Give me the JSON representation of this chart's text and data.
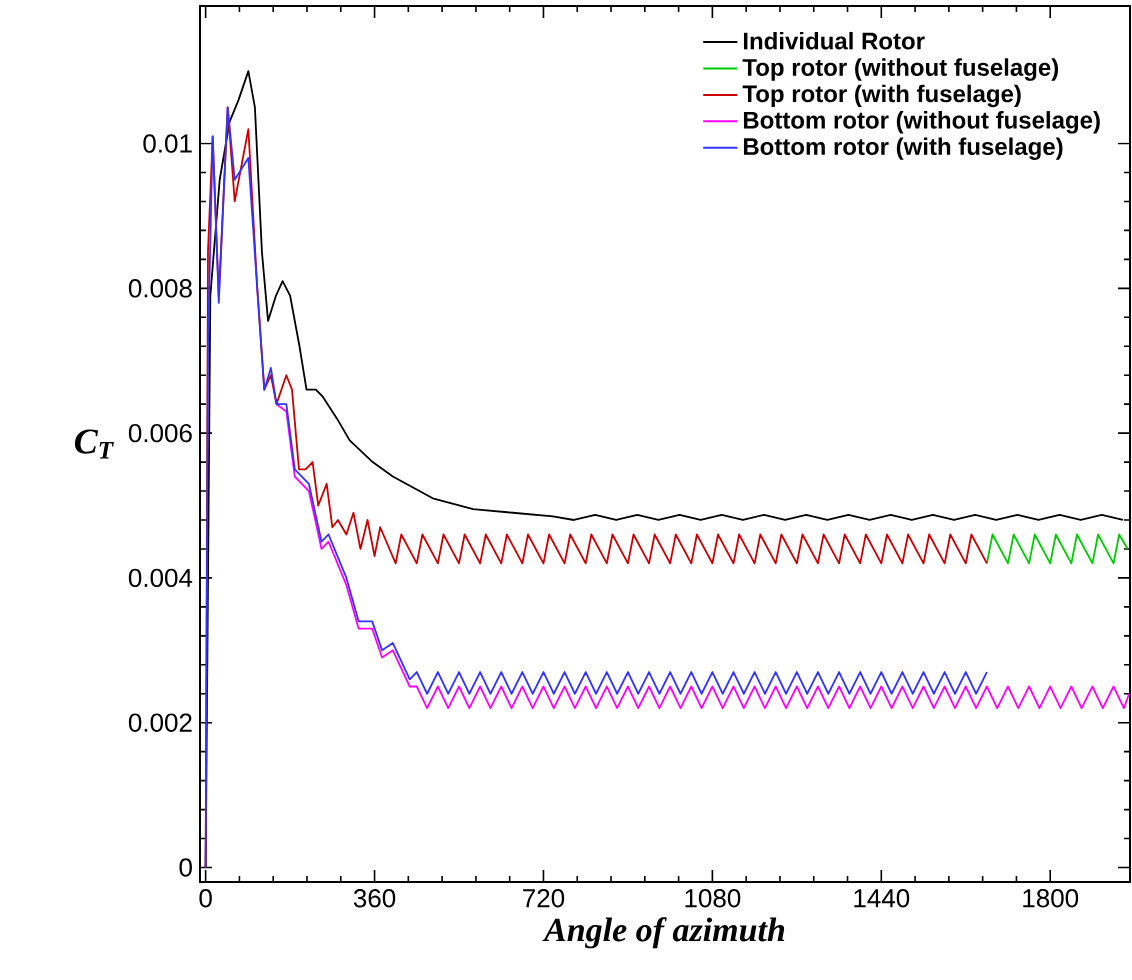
{
  "chart_data": {
    "type": "line",
    "xlabel": "Angle of azimuth",
    "ylabel": "C$_{T}$",
    "xlim": [
      -12,
      1970
    ],
    "ylim": [
      -0.0002,
      0.0119
    ],
    "xticks": [
      0,
      360,
      720,
      1080,
      1440,
      1800
    ],
    "yticks": [
      0,
      0.002,
      0.004,
      0.006,
      0.008,
      0.01
    ],
    "grid": false,
    "legend": "top right",
    "marker": "none",
    "line_style": "solid",
    "series": [
      {
        "name": "Individual Rotor",
        "color": "#000000",
        "x": [
          0,
          10,
          30,
          51,
          70,
          91,
          105,
          120,
          133,
          150,
          164,
          180,
          200,
          215,
          235,
          250,
          280,
          307,
          356,
          399,
          484,
          570,
          655,
          740,
          785,
          830,
          875,
          920,
          965,
          1010,
          1055,
          1100,
          1145,
          1190,
          1235,
          1280,
          1325,
          1370,
          1415,
          1460,
          1505,
          1550,
          1595,
          1640,
          1685,
          1730,
          1775,
          1820,
          1865,
          1910,
          1955
        ],
        "values": [
          0,
          0.0079,
          0.0095,
          0.0103,
          0.0106,
          0.011,
          0.0105,
          0.0085,
          0.00755,
          0.0079,
          0.0081,
          0.0079,
          0.0072,
          0.0066,
          0.0066,
          0.0065,
          0.0062,
          0.0059,
          0.0056,
          0.0054,
          0.0051,
          0.00495,
          0.0049,
          0.00485,
          0.0048,
          0.00487,
          0.0048,
          0.00487,
          0.0048,
          0.00487,
          0.0048,
          0.00487,
          0.0048,
          0.00487,
          0.0048,
          0.00487,
          0.0048,
          0.00487,
          0.0048,
          0.00487,
          0.0048,
          0.00487,
          0.0048,
          0.00487,
          0.0048,
          0.00487,
          0.0048,
          0.00487,
          0.0048,
          0.00487,
          0.0048
        ]
      },
      {
        "name": "Top rotor (without fuselage)",
        "color": "#00cc00",
        "x": [
          1665,
          1677,
          1710,
          1722,
          1755,
          1767,
          1800,
          1812,
          1845,
          1857,
          1890,
          1902,
          1935,
          1947,
          1965
        ],
        "values": [
          0.0042,
          0.0046,
          0.0042,
          0.0046,
          0.0042,
          0.0046,
          0.0042,
          0.0046,
          0.0042,
          0.0046,
          0.0042,
          0.0046,
          0.0042,
          0.0046,
          0.0044
        ]
      },
      {
        "name": "Top rotor (with fuselage)",
        "color": "#cc0000",
        "x": [
          0,
          5,
          15,
          28,
          47,
          62,
          91,
          110,
          125,
          139,
          151,
          172,
          184,
          199,
          213,
          228,
          240,
          258,
          270,
          282,
          300,
          315,
          330,
          345,
          360,
          372,
          405,
          417,
          450,
          462,
          495,
          507,
          540,
          552,
          585,
          597,
          630,
          642,
          675,
          687,
          720,
          732,
          765,
          777,
          810,
          822,
          855,
          867,
          900,
          912,
          945,
          957,
          990,
          1002,
          1035,
          1047,
          1080,
          1092,
          1125,
          1137,
          1170,
          1182,
          1215,
          1227,
          1260,
          1272,
          1305,
          1317,
          1350,
          1362,
          1395,
          1407,
          1440,
          1452,
          1485,
          1497,
          1530,
          1542,
          1575,
          1587,
          1620,
          1632,
          1665
        ],
        "values": [
          0,
          0.0085,
          0.0101,
          0.0079,
          0.0105,
          0.0092,
          0.0102,
          0.008,
          0.0066,
          0.0068,
          0.0064,
          0.0068,
          0.0066,
          0.0055,
          0.0055,
          0.0056,
          0.005,
          0.0053,
          0.0047,
          0.0048,
          0.0046,
          0.0049,
          0.0044,
          0.0048,
          0.0043,
          0.0047,
          0.0042,
          0.0046,
          0.0042,
          0.0046,
          0.0042,
          0.0046,
          0.0042,
          0.0046,
          0.0042,
          0.0046,
          0.0042,
          0.0046,
          0.0042,
          0.0046,
          0.0042,
          0.0046,
          0.0042,
          0.0046,
          0.0042,
          0.0046,
          0.0042,
          0.0046,
          0.0042,
          0.0046,
          0.0042,
          0.0046,
          0.0042,
          0.0046,
          0.0042,
          0.0046,
          0.0042,
          0.0046,
          0.0042,
          0.0046,
          0.0042,
          0.0046,
          0.0042,
          0.0046,
          0.0042,
          0.0046,
          0.0042,
          0.0046,
          0.0042,
          0.0046,
          0.0042,
          0.0046,
          0.0042,
          0.0046,
          0.0042,
          0.0046,
          0.0042,
          0.0046,
          0.0042,
          0.0046,
          0.0042,
          0.0046,
          0.0042
        ]
      },
      {
        "name": "Bottom rotor (without fuselage)",
        "color": "#ff00ff",
        "x": [
          151,
          172,
          190,
          220,
          247,
          262,
          300,
          326,
          355,
          376,
          399,
          435,
          450,
          472,
          495,
          517,
          540,
          562,
          585,
          607,
          630,
          652,
          675,
          697,
          720,
          742,
          765,
          787,
          810,
          832,
          855,
          877,
          900,
          922,
          945,
          967,
          990,
          1012,
          1035,
          1057,
          1080,
          1102,
          1125,
          1147,
          1170,
          1192,
          1215,
          1237,
          1260,
          1282,
          1305,
          1327,
          1350,
          1372,
          1395,
          1417,
          1440,
          1462,
          1485,
          1507,
          1530,
          1552,
          1575,
          1597,
          1620,
          1642,
          1665,
          1687,
          1710,
          1732,
          1755,
          1777,
          1800,
          1822,
          1845,
          1867,
          1890,
          1912,
          1935,
          1957,
          1968
        ],
        "values": [
          0.0064,
          0.0063,
          0.0054,
          0.0052,
          0.0044,
          0.0045,
          0.0039,
          0.0033,
          0.0033,
          0.0029,
          0.003,
          0.0025,
          0.0025,
          0.0022,
          0.0025,
          0.0022,
          0.0025,
          0.0022,
          0.0025,
          0.0022,
          0.0025,
          0.0022,
          0.0025,
          0.0022,
          0.0025,
          0.0022,
          0.0025,
          0.0022,
          0.0025,
          0.0022,
          0.0025,
          0.0022,
          0.0025,
          0.0022,
          0.0025,
          0.0022,
          0.0025,
          0.0022,
          0.0025,
          0.0022,
          0.0025,
          0.0022,
          0.0025,
          0.0022,
          0.0025,
          0.0022,
          0.0025,
          0.0022,
          0.0025,
          0.0022,
          0.0025,
          0.0022,
          0.0025,
          0.0022,
          0.0025,
          0.0022,
          0.0025,
          0.0022,
          0.0025,
          0.0022,
          0.0025,
          0.0022,
          0.0025,
          0.0022,
          0.0025,
          0.0022,
          0.0025,
          0.0022,
          0.0025,
          0.0022,
          0.0025,
          0.0022,
          0.0025,
          0.0022,
          0.0025,
          0.0022,
          0.0025,
          0.0022,
          0.0025,
          0.0022,
          0.0024
        ]
      },
      {
        "name": "Bottom rotor (with fuselage)",
        "color": "#3333ff",
        "x": [
          0,
          5,
          15,
          28,
          47,
          62,
          91,
          110,
          125,
          139,
          151,
          172,
          190,
          220,
          247,
          262,
          300,
          326,
          355,
          376,
          399,
          435,
          450,
          472,
          495,
          517,
          540,
          562,
          585,
          607,
          630,
          652,
          675,
          697,
          720,
          742,
          765,
          787,
          810,
          832,
          855,
          877,
          900,
          922,
          945,
          967,
          990,
          1012,
          1035,
          1057,
          1080,
          1102,
          1125,
          1147,
          1170,
          1192,
          1215,
          1237,
          1260,
          1282,
          1305,
          1327,
          1350,
          1372,
          1395,
          1417,
          1440,
          1462,
          1485,
          1507,
          1530,
          1552,
          1575,
          1597,
          1620,
          1642,
          1665
        ],
        "values": [
          0,
          0.0072,
          0.0101,
          0.0078,
          0.0105,
          0.0095,
          0.0098,
          0.008,
          0.0066,
          0.0069,
          0.0064,
          0.0064,
          0.0055,
          0.0053,
          0.0045,
          0.0046,
          0.004,
          0.0034,
          0.0034,
          0.003,
          0.0031,
          0.0026,
          0.0027,
          0.0024,
          0.0027,
          0.0024,
          0.0027,
          0.0024,
          0.0027,
          0.0024,
          0.0027,
          0.0024,
          0.0027,
          0.0024,
          0.0027,
          0.0024,
          0.0027,
          0.0024,
          0.0027,
          0.0024,
          0.0027,
          0.0024,
          0.0027,
          0.0024,
          0.0027,
          0.0024,
          0.0027,
          0.0024,
          0.0027,
          0.0024,
          0.0027,
          0.0024,
          0.0027,
          0.0024,
          0.0027,
          0.0024,
          0.0027,
          0.0024,
          0.0027,
          0.0024,
          0.0027,
          0.0024,
          0.0027,
          0.0024,
          0.0027,
          0.0024,
          0.0027,
          0.0024,
          0.0027,
          0.0024,
          0.0027,
          0.0024,
          0.0027,
          0.0024,
          0.0027,
          0.0024,
          0.0027
        ]
      }
    ]
  }
}
